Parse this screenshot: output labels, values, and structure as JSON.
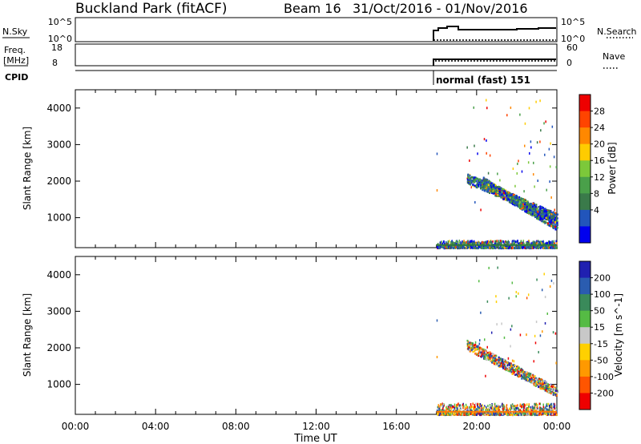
{
  "header": {
    "site": "Buckland Park (fitACF)",
    "beam": "Beam 16",
    "date_range": "31/Oct/2016 - 01/Nov/2016"
  },
  "top_panels": {
    "nsky_label": "N.Sky",
    "nsky_ticks": [
      "10^5",
      "10^0"
    ],
    "nsearch_label": "N.Search",
    "nsearch_ticks": [
      "10^5",
      "10^0"
    ],
    "freq_label_line1": "Freq.",
    "freq_label_line2": "[MHz]",
    "freq_ticks": [
      "18",
      "8"
    ],
    "nave_label": "Nave",
    "nave_ticks": [
      "60",
      "0"
    ],
    "cpid_label": "CPID",
    "cpid_value": "normal (fast) 151"
  },
  "axes": {
    "ylabel": "Slant Range [km]",
    "xlabel": "Time UT",
    "xticks": [
      "00:00",
      "04:00",
      "08:00",
      "12:00",
      "16:00",
      "20:00",
      "00:00"
    ]
  },
  "colors": {
    "power": [
      "#0000ee",
      "#2255bb",
      "#3a7a4a",
      "#4aa04a",
      "#7cc83a",
      "#ffcc00",
      "#ff8800",
      "#ff4400",
      "#ee0000"
    ],
    "velocity": [
      "#2020b0",
      "#2a5cb0",
      "#3a8a5a",
      "#55bb44",
      "#c8c8c8",
      "#ffd000",
      "#ff9900",
      "#ff5500",
      "#ee0000"
    ]
  },
  "chart_data": [
    {
      "type": "heatmap",
      "panel": "power",
      "xlabel": "Time UT",
      "ylabel": "Slant Range [km]",
      "xlim_hours": [
        0,
        24
      ],
      "ylim": [
        180,
        4500
      ],
      "yticks": [
        1000,
        2000,
        3000,
        4000
      ],
      "colorbar_label": "Power [dB]",
      "colorbar_ticks": [
        "28",
        "24",
        "20",
        "16",
        "12",
        "8",
        "4"
      ],
      "data_start_hour": 18.0,
      "features": [
        {
          "name": "ground scatter band",
          "t": [
            18.0,
            24.0
          ],
          "range_km": [
            200,
            400
          ]
        },
        {
          "name": "descending band A",
          "t_start": 19.5,
          "t_end": 24.0,
          "range_start_km": 2100,
          "range_end_km": 1000
        },
        {
          "name": "descending band B",
          "t_start": 20.3,
          "t_end": 24.0,
          "range_start_km": 2000,
          "range_end_km": 800
        }
      ]
    },
    {
      "type": "heatmap",
      "panel": "velocity",
      "xlabel": "Time UT",
      "ylabel": "Slant Range [km]",
      "xlim_hours": [
        0,
        24
      ],
      "ylim": [
        180,
        4500
      ],
      "yticks": [
        1000,
        2000,
        3000,
        4000
      ],
      "colorbar_label": "Velocity [m s^-1]",
      "colorbar_ticks": [
        "200",
        "100",
        "50",
        "15",
        "-15",
        "-50",
        "-100",
        "-200"
      ],
      "data_start_hour": 18.0,
      "features": [
        {
          "name": "ground scatter band",
          "t": [
            18.0,
            24.0
          ],
          "range_km": [
            200,
            500
          ]
        },
        {
          "name": "descending band",
          "t_start": 19.5,
          "t_end": 24.0,
          "range_start_km": 2100,
          "range_end_km": 800
        }
      ]
    }
  ]
}
